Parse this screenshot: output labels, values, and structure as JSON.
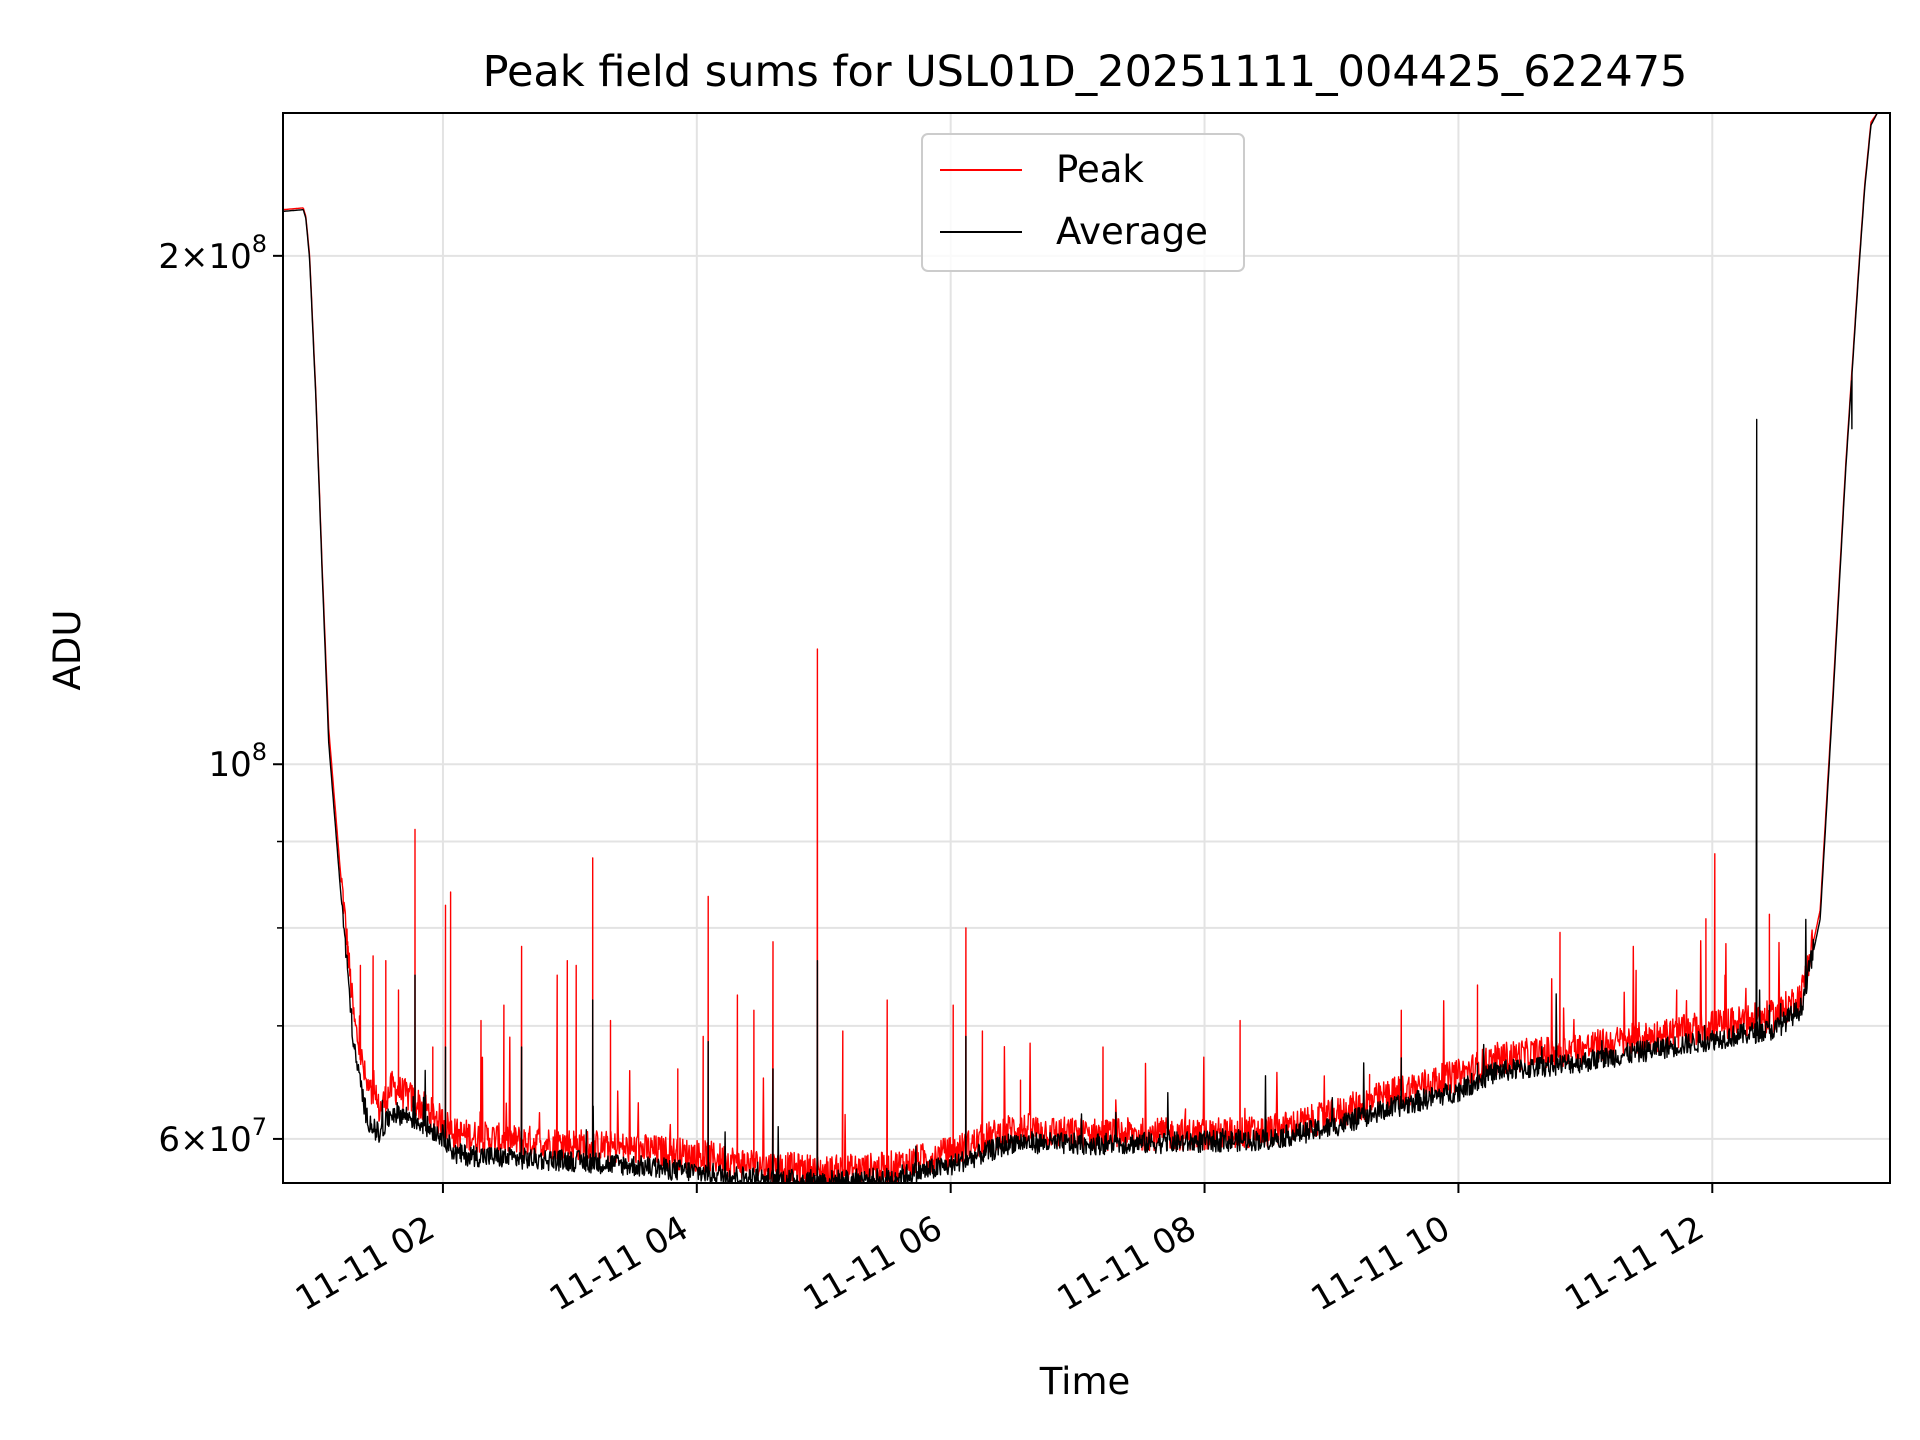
{
  "chart_data": {
    "type": "line",
    "title": "Peak field sums for USL01D_20251111_004425_622475",
    "xlabel": "Time",
    "ylabel": "ADU",
    "x_unit": "hours since 2025-11-11 00:00",
    "xlim": [
      0.74,
      13.4
    ],
    "ylim": [
      56500000,
      243000000
    ],
    "y_scale": "log",
    "grid": true,
    "legend_position": "top-center",
    "x_ticks": [
      {
        "value": 2,
        "label": "11-11 02"
      },
      {
        "value": 4,
        "label": "11-11 04"
      },
      {
        "value": 6,
        "label": "11-11 06"
      },
      {
        "value": 8,
        "label": "11-11 08"
      },
      {
        "value": 10,
        "label": "11-11 10"
      },
      {
        "value": 12,
        "label": "11-11 12"
      }
    ],
    "y_major_ticks": [
      {
        "value": 60000000,
        "base": "6",
        "exp": "7"
      },
      {
        "value": 100000000,
        "base": "",
        "exp": "8"
      },
      {
        "value": 200000000,
        "base": "2",
        "exp": "8"
      }
    ],
    "y_minor_ticks": [
      70000000,
      80000000,
      90000000
    ],
    "series": [
      {
        "name": "Peak",
        "color": "#ff0000",
        "x": [
          0.74,
          0.9,
          0.92,
          0.95,
          1.0,
          1.05,
          1.1,
          1.2,
          1.3,
          1.4,
          1.5,
          1.6,
          1.75,
          2.0,
          2.1,
          2.5,
          3.0,
          3.5,
          4.0,
          4.5,
          5.0,
          5.5,
          6.0,
          6.5,
          7.0,
          7.5,
          8.0,
          8.5,
          9.0,
          9.5,
          10.0,
          10.3,
          10.5,
          11.0,
          11.5,
          12.0,
          12.5,
          12.7,
          12.85,
          12.95,
          13.05,
          13.15,
          13.2,
          13.25,
          13.3
        ],
        "y": [
          213000000,
          213500000,
          211000000,
          200000000,
          165000000,
          130000000,
          105000000,
          85000000,
          70000000,
          64000000,
          62000000,
          64000000,
          63000000,
          61000000,
          60000000,
          59500000,
          59200000,
          58800000,
          58300000,
          57500000,
          57000000,
          57300000,
          58500000,
          60500000,
          60000000,
          60000000,
          60000000,
          60200000,
          61500000,
          63500000,
          65000000,
          66500000,
          66800000,
          67500000,
          68500000,
          69500000,
          70500000,
          72500000,
          82000000,
          110000000,
          150000000,
          195000000,
          220000000,
          240000000,
          243000000
        ],
        "spikes": [
          [
            1.25,
            78500000
          ],
          [
            1.35,
            76000000
          ],
          [
            1.45,
            77000000
          ],
          [
            1.55,
            76500000
          ],
          [
            1.65,
            73500000
          ],
          [
            1.78,
            91500000
          ],
          [
            1.92,
            68000000
          ],
          [
            2.02,
            82500000
          ],
          [
            2.06,
            84000000
          ],
          [
            2.3,
            70500000
          ],
          [
            2.48,
            72000000
          ],
          [
            2.62,
            78000000
          ],
          [
            2.9,
            75000000
          ],
          [
            2.98,
            76500000
          ],
          [
            3.05,
            76000000
          ],
          [
            3.18,
            88000000
          ],
          [
            3.32,
            70500000
          ],
          [
            3.85,
            66000000
          ],
          [
            4.05,
            69000000
          ],
          [
            4.09,
            83500000
          ],
          [
            4.32,
            73000000
          ],
          [
            4.45,
            71500000
          ],
          [
            4.6,
            78500000
          ],
          [
            4.95,
            117000000
          ],
          [
            5.15,
            69500000
          ],
          [
            5.5,
            72500000
          ],
          [
            6.02,
            72000000
          ],
          [
            6.12,
            80000000
          ],
          [
            6.25,
            69500000
          ],
          [
            6.55,
            65000000
          ],
          [
            7.2,
            68000000
          ],
          [
            7.85,
            62500000
          ],
          [
            8.28,
            70500000
          ],
          [
            9.3,
            65500000
          ],
          [
            9.55,
            71500000
          ],
          [
            10.15,
            74000000
          ],
          [
            10.8,
            79500000
          ],
          [
            11.4,
            75500000
          ],
          [
            11.72,
            73500000
          ],
          [
            11.95,
            81000000
          ],
          [
            12.02,
            88500000
          ],
          [
            12.1,
            75000000
          ],
          [
            12.45,
            81500000
          ]
        ]
      },
      {
        "name": "Average",
        "color": "#000000",
        "x": [
          0.74,
          0.9,
          0.92,
          0.95,
          1.0,
          1.05,
          1.1,
          1.2,
          1.3,
          1.4,
          1.5,
          1.6,
          1.75,
          2.0,
          2.1,
          2.5,
          3.0,
          3.5,
          4.0,
          4.5,
          5.0,
          5.5,
          6.0,
          6.5,
          7.0,
          7.5,
          8.0,
          8.5,
          9.0,
          9.5,
          10.0,
          10.3,
          10.5,
          11.0,
          11.5,
          12.0,
          12.5,
          12.7,
          12.85,
          12.95,
          13.05,
          13.15,
          13.2,
          13.25,
          13.3
        ],
        "y": [
          212500000,
          213000000,
          210500000,
          199000000,
          164000000,
          129000000,
          103000000,
          83000000,
          67500000,
          61500000,
          60000000,
          62000000,
          61500000,
          60000000,
          58500000,
          58200000,
          58000000,
          57600000,
          57100000,
          56600000,
          56400000,
          56600000,
          57600000,
          59500000,
          59300000,
          59400000,
          59500000,
          59700000,
          60700000,
          62400000,
          63800000,
          65500000,
          65700000,
          66400000,
          67400000,
          68400000,
          69400000,
          71400000,
          81000000,
          109000000,
          149000000,
          194000000,
          219000000,
          239000000,
          243000000
        ],
        "spikes": [
          [
            1.78,
            75000000
          ],
          [
            2.02,
            68000000
          ],
          [
            2.62,
            68000000
          ],
          [
            3.18,
            72500000
          ],
          [
            4.09,
            68500000
          ],
          [
            4.6,
            66000000
          ],
          [
            4.95,
            76500000
          ],
          [
            6.12,
            69000000
          ],
          [
            9.55,
            67000000
          ],
          [
            10.15,
            66500000
          ],
          [
            12.45,
            72000000
          ]
        ],
        "dips": [
          [
            12.35,
            160000000
          ],
          [
            13.1,
            158000000
          ]
        ]
      }
    ]
  }
}
